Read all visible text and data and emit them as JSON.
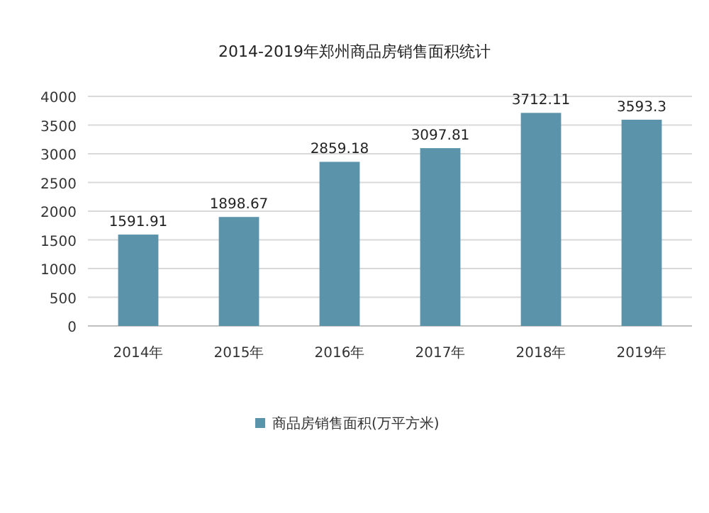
{
  "chart_data": {
    "type": "bar",
    "title": "2014-2019年郑州商品房销售面积统计",
    "categories": [
      "2014年",
      "2015年",
      "2016年",
      "2017年",
      "2018年",
      "2019年"
    ],
    "series": [
      {
        "name": "商品房销售面积(万平方米)",
        "color": "#5b93ab",
        "values": [
          1591.91,
          1898.67,
          2859.18,
          3097.81,
          3712.11,
          3593.3
        ]
      }
    ],
    "ylim": [
      0,
      4000
    ],
    "yticks": [
      0,
      500,
      1000,
      1500,
      2000,
      2500,
      3000,
      3500,
      4000
    ],
    "grid": "y",
    "legend": "bottom",
    "data_labels": true
  }
}
